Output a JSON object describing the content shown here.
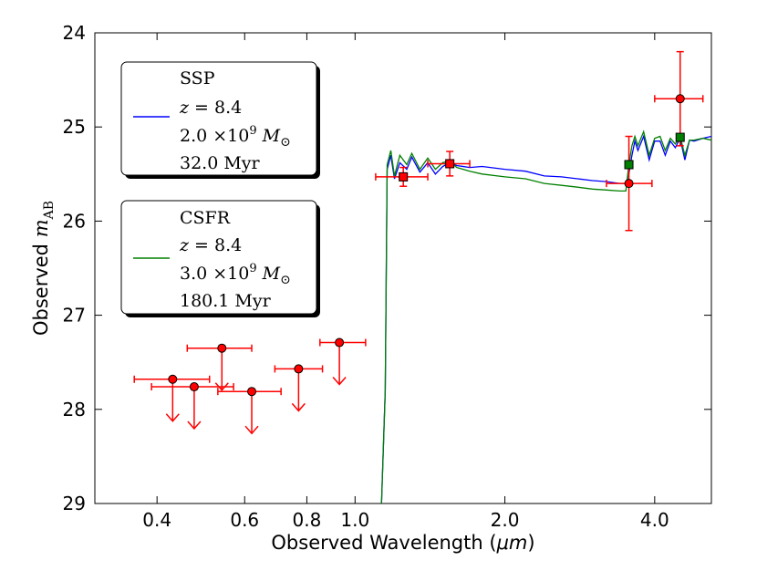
{
  "chart_data": {
    "type": "scatter",
    "xlabel": "Observed Wavelength",
    "xlabel_unit": "μm",
    "ylabel": "Observed",
    "ylabel_sym": "m",
    "ylabel_sub": "AB",
    "x_scale": "log",
    "xlim": [
      0.3,
      5.2
    ],
    "ylim": [
      29,
      24
    ],
    "xticks": [
      {
        "value": 0.4,
        "label": "0.4"
      },
      {
        "value": 0.6,
        "label": "0.6"
      },
      {
        "value": 0.8,
        "label": "0.8"
      },
      {
        "value": 1.0,
        "label": "1.0"
      },
      {
        "value": 2.0,
        "label": "2.0"
      },
      {
        "value": 4.0,
        "label": "4.0"
      }
    ],
    "yticks": [
      {
        "value": 24,
        "label": "24"
      },
      {
        "value": 25,
        "label": "25"
      },
      {
        "value": 26,
        "label": "26"
      },
      {
        "value": 27,
        "label": "27"
      },
      {
        "value": 28,
        "label": "28"
      },
      {
        "value": 29,
        "label": "29"
      }
    ],
    "upper_limits": [
      {
        "x": 0.43,
        "xerr": [
          0.36,
          0.51
        ],
        "y": 27.68
      },
      {
        "x": 0.475,
        "xerr": [
          0.39,
          0.57
        ],
        "y": 27.76
      },
      {
        "x": 0.54,
        "xerr": [
          0.46,
          0.62
        ],
        "y": 27.35
      },
      {
        "x": 0.62,
        "xerr": [
          0.53,
          0.71
        ],
        "y": 27.81
      },
      {
        "x": 0.77,
        "xerr": [
          0.69,
          0.86
        ],
        "y": 27.57
      },
      {
        "x": 0.93,
        "xerr": [
          0.85,
          1.05
        ],
        "y": 27.29
      }
    ],
    "detections": [
      {
        "x": 1.25,
        "xerr": [
          1.1,
          1.4
        ],
        "y": 25.53,
        "yerr": [
          25.43,
          25.63
        ]
      },
      {
        "x": 1.55,
        "xerr": [
          1.4,
          1.7
        ],
        "y": 25.39,
        "yerr": [
          25.26,
          25.52
        ]
      },
      {
        "x": 3.55,
        "xerr": [
          3.2,
          3.95
        ],
        "y": 25.6,
        "yerr": [
          25.1,
          26.1
        ]
      },
      {
        "x": 4.5,
        "xerr": [
          4.0,
          5.0
        ],
        "y": 24.7,
        "yerr": [
          24.2,
          25.2
        ]
      }
    ],
    "model_points": [
      {
        "series": "SSP",
        "x": 1.25,
        "y": 25.53
      },
      {
        "series": "SSP",
        "x": 1.55,
        "y": 25.39
      },
      {
        "series": "CSFR",
        "x": 3.55,
        "y": 25.4
      },
      {
        "series": "CSFR",
        "x": 4.5,
        "y": 25.11
      }
    ],
    "series": [
      {
        "name": "SSP",
        "color": "#0000ff",
        "legend": {
          "title": "SSP",
          "z": "8.4",
          "mass": "2.0",
          "mass_exp": "9",
          "age": "32.0 Myr"
        },
        "x": [
          1.13,
          1.15,
          1.16,
          1.18,
          1.2,
          1.23,
          1.27,
          1.3,
          1.35,
          1.4,
          1.45,
          1.5,
          1.55,
          1.6,
          1.7,
          1.8,
          2.0,
          2.2,
          2.4,
          2.6,
          2.8,
          3.0,
          3.2,
          3.4,
          3.5,
          3.55,
          3.6,
          3.65,
          3.7,
          3.8,
          3.9,
          4.0,
          4.1,
          4.2,
          4.3,
          4.4,
          4.5,
          4.6,
          4.7,
          4.8,
          5.0,
          5.2
        ],
        "y": [
          29.0,
          27.8,
          25.45,
          25.3,
          25.55,
          25.38,
          25.45,
          25.32,
          25.48,
          25.38,
          25.5,
          25.42,
          25.38,
          25.41,
          25.43,
          25.42,
          25.45,
          25.47,
          25.52,
          25.53,
          25.55,
          25.57,
          25.58,
          25.6,
          25.6,
          25.5,
          25.3,
          25.15,
          25.25,
          25.1,
          25.35,
          25.15,
          25.15,
          25.3,
          25.15,
          25.22,
          25.12,
          25.35,
          25.14,
          25.15,
          25.12,
          25.1
        ]
      },
      {
        "name": "CSFR",
        "color": "#008000",
        "legend": {
          "title": "CSFR",
          "z": "8.4",
          "mass": "3.0",
          "mass_exp": "9",
          "age": "180.1 Myr"
        },
        "x": [
          1.13,
          1.15,
          1.16,
          1.18,
          1.2,
          1.23,
          1.27,
          1.3,
          1.35,
          1.4,
          1.45,
          1.5,
          1.55,
          1.6,
          1.7,
          1.8,
          2.0,
          2.2,
          2.4,
          2.6,
          2.8,
          3.0,
          3.2,
          3.4,
          3.5,
          3.55,
          3.6,
          3.65,
          3.7,
          3.8,
          3.9,
          4.0,
          4.1,
          4.2,
          4.3,
          4.4,
          4.5,
          4.6,
          4.7,
          4.8,
          5.0,
          5.2
        ],
        "y": [
          29.0,
          27.8,
          25.4,
          25.25,
          25.52,
          25.3,
          25.4,
          25.28,
          25.45,
          25.33,
          25.45,
          25.38,
          25.36,
          25.43,
          25.47,
          25.5,
          25.53,
          25.55,
          25.6,
          25.62,
          25.64,
          25.66,
          25.67,
          25.68,
          25.68,
          25.4,
          25.2,
          25.1,
          25.2,
          25.05,
          25.3,
          25.12,
          25.1,
          25.25,
          25.12,
          25.18,
          25.1,
          25.3,
          25.14,
          25.14,
          25.12,
          25.14
        ]
      }
    ]
  }
}
